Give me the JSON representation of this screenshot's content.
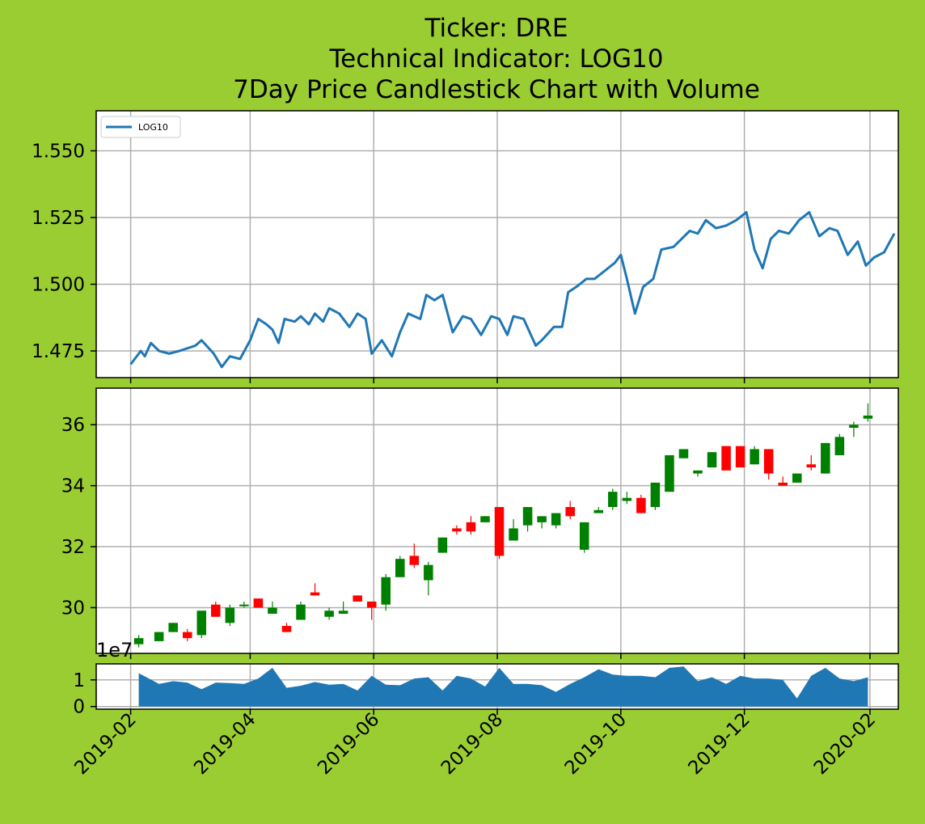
{
  "figure": {
    "title_lines": [
      "Ticker: DRE",
      "Technical Indicator: LOG10",
      "7Day Price Candlestick Chart with Volume"
    ],
    "background_color": "#9acd32",
    "x_axis": {
      "type": "date",
      "range": [
        "2019-01-15",
        "2020-02-15"
      ],
      "tick_labels": [
        "2019-02",
        "2019-04",
        "2019-06",
        "2019-08",
        "2019-10",
        "2019-12",
        "2020-02"
      ]
    }
  },
  "chart_data": [
    {
      "type": "line",
      "panel": "indicator",
      "ylim": [
        1.465,
        1.565
      ],
      "yticks": [
        "1.475",
        "1.500",
        "1.525",
        "1.550"
      ],
      "grid": true,
      "legend": {
        "placement": "top-left",
        "entries": [
          "LOG10"
        ]
      },
      "series": [
        {
          "name": "LOG10",
          "color": "#1f77b4",
          "points": [
            [
              "2019-02-01",
              1.47
            ],
            [
              "2019-02-06",
              1.475
            ],
            [
              "2019-02-08",
              1.473
            ],
            [
              "2019-02-11",
              1.478
            ],
            [
              "2019-02-15",
              1.475
            ],
            [
              "2019-02-20",
              1.474
            ],
            [
              "2019-02-25",
              1.475
            ],
            [
              "2019-03-05",
              1.477
            ],
            [
              "2019-03-08",
              1.479
            ],
            [
              "2019-03-14",
              1.474
            ],
            [
              "2019-03-18",
              1.469
            ],
            [
              "2019-03-22",
              1.473
            ],
            [
              "2019-03-27",
              1.472
            ],
            [
              "2019-04-01",
              1.479
            ],
            [
              "2019-04-05",
              1.487
            ],
            [
              "2019-04-09",
              1.485
            ],
            [
              "2019-04-12",
              1.483
            ],
            [
              "2019-04-15",
              1.478
            ],
            [
              "2019-04-18",
              1.487
            ],
            [
              "2019-04-23",
              1.486
            ],
            [
              "2019-04-26",
              1.488
            ],
            [
              "2019-04-30",
              1.485
            ],
            [
              "2019-05-03",
              1.489
            ],
            [
              "2019-05-07",
              1.486
            ],
            [
              "2019-05-10",
              1.491
            ],
            [
              "2019-05-15",
              1.489
            ],
            [
              "2019-05-20",
              1.484
            ],
            [
              "2019-05-24",
              1.489
            ],
            [
              "2019-05-28",
              1.487
            ],
            [
              "2019-05-31",
              1.474
            ],
            [
              "2019-06-05",
              1.479
            ],
            [
              "2019-06-10",
              1.473
            ],
            [
              "2019-06-14",
              1.482
            ],
            [
              "2019-06-18",
              1.489
            ],
            [
              "2019-06-24",
              1.487
            ],
            [
              "2019-06-27",
              1.496
            ],
            [
              "2019-07-01",
              1.494
            ],
            [
              "2019-07-05",
              1.496
            ],
            [
              "2019-07-10",
              1.482
            ],
            [
              "2019-07-15",
              1.488
            ],
            [
              "2019-07-19",
              1.487
            ],
            [
              "2019-07-24",
              1.481
            ],
            [
              "2019-07-29",
              1.488
            ],
            [
              "2019-08-02",
              1.487
            ],
            [
              "2019-08-06",
              1.481
            ],
            [
              "2019-08-09",
              1.488
            ],
            [
              "2019-08-14",
              1.487
            ],
            [
              "2019-08-20",
              1.477
            ],
            [
              "2019-08-23",
              1.479
            ],
            [
              "2019-08-29",
              1.484
            ],
            [
              "2019-09-02",
              1.484
            ],
            [
              "2019-09-05",
              1.497
            ],
            [
              "2019-09-09",
              1.499
            ],
            [
              "2019-09-14",
              1.502
            ],
            [
              "2019-09-18",
              1.502
            ],
            [
              "2019-09-23",
              1.505
            ],
            [
              "2019-09-28",
              1.508
            ],
            [
              "2019-10-01",
              1.511
            ],
            [
              "2019-10-04",
              1.502
            ],
            [
              "2019-10-08",
              1.489
            ],
            [
              "2019-10-12",
              1.499
            ],
            [
              "2019-10-17",
              1.502
            ],
            [
              "2019-10-21",
              1.513
            ],
            [
              "2019-10-27",
              1.514
            ],
            [
              "2019-10-31",
              1.517
            ],
            [
              "2019-11-04",
              1.52
            ],
            [
              "2019-11-08",
              1.519
            ],
            [
              "2019-11-12",
              1.524
            ],
            [
              "2019-11-17",
              1.521
            ],
            [
              "2019-11-22",
              1.522
            ],
            [
              "2019-11-27",
              1.524
            ],
            [
              "2019-12-02",
              1.527
            ],
            [
              "2019-12-06",
              1.513
            ],
            [
              "2019-12-10",
              1.506
            ],
            [
              "2019-12-14",
              1.517
            ],
            [
              "2019-12-18",
              1.52
            ],
            [
              "2019-12-23",
              1.519
            ],
            [
              "2019-12-28",
              1.524
            ],
            [
              "2020-01-02",
              1.527
            ],
            [
              "2020-01-07",
              1.518
            ],
            [
              "2020-01-12",
              1.521
            ],
            [
              "2020-01-16",
              1.52
            ],
            [
              "2020-01-21",
              1.511
            ],
            [
              "2020-01-26",
              1.516
            ],
            [
              "2020-01-30",
              1.507
            ],
            [
              "2020-02-03",
              1.51
            ],
            [
              "2020-02-08",
              1.512
            ],
            [
              "2020-02-13",
              1.519
            ]
          ]
        }
      ]
    },
    {
      "type": "candlestick",
      "panel": "price",
      "ylim": [
        28.5,
        37.2
      ],
      "yticks": [
        "30",
        "32",
        "34",
        "36"
      ],
      "grid": true,
      "up_color": "#008000",
      "down_color": "#ff0000",
      "candles": [
        [
          "2019-02-05",
          28.8,
          29.1,
          28.7,
          29.0
        ],
        [
          "2019-02-15",
          28.9,
          29.2,
          28.9,
          29.2
        ],
        [
          "2019-02-22",
          29.2,
          29.5,
          29.2,
          29.5
        ],
        [
          "2019-03-01",
          29.2,
          29.3,
          28.9,
          29.0
        ],
        [
          "2019-03-08",
          29.1,
          29.9,
          29.0,
          29.9
        ],
        [
          "2019-03-15",
          30.1,
          30.2,
          29.7,
          29.7
        ],
        [
          "2019-03-22",
          29.5,
          30.1,
          29.4,
          30.0
        ],
        [
          "2019-03-29",
          30.1,
          30.2,
          30.0,
          30.1
        ],
        [
          "2019-04-05",
          30.3,
          30.3,
          30.0,
          30.0
        ],
        [
          "2019-04-12",
          29.8,
          30.2,
          29.8,
          30.0
        ],
        [
          "2019-04-19",
          29.4,
          29.5,
          29.2,
          29.2
        ],
        [
          "2019-04-26",
          29.6,
          30.2,
          29.6,
          30.1
        ],
        [
          "2019-05-03",
          30.5,
          30.8,
          30.4,
          30.4
        ],
        [
          "2019-05-10",
          29.7,
          30.0,
          29.6,
          29.9
        ],
        [
          "2019-05-17",
          29.8,
          30.2,
          29.8,
          29.9
        ],
        [
          "2019-05-24",
          30.4,
          30.4,
          30.2,
          30.2
        ],
        [
          "2019-05-31",
          30.2,
          30.2,
          29.6,
          30.0
        ],
        [
          "2019-06-07",
          30.1,
          31.1,
          29.9,
          31.0
        ],
        [
          "2019-06-14",
          31.0,
          31.7,
          31.0,
          31.6
        ],
        [
          "2019-06-21",
          31.7,
          32.1,
          31.3,
          31.4
        ],
        [
          "2019-06-28",
          30.9,
          31.5,
          30.4,
          31.4
        ],
        [
          "2019-07-05",
          31.8,
          32.3,
          31.8,
          32.3
        ],
        [
          "2019-07-12",
          32.6,
          32.7,
          32.4,
          32.5
        ],
        [
          "2019-07-19",
          32.8,
          33.0,
          32.4,
          32.5
        ],
        [
          "2019-07-26",
          32.8,
          33.0,
          32.8,
          33.0
        ],
        [
          "2019-08-02",
          33.3,
          33.3,
          31.6,
          31.7
        ],
        [
          "2019-08-09",
          32.2,
          32.9,
          32.2,
          32.6
        ],
        [
          "2019-08-16",
          32.7,
          33.3,
          32.5,
          33.3
        ],
        [
          "2019-08-23",
          32.8,
          33.0,
          32.6,
          33.0
        ],
        [
          "2019-08-30",
          32.7,
          33.1,
          32.6,
          33.1
        ],
        [
          "2019-09-06",
          33.3,
          33.5,
          32.9,
          33.0
        ],
        [
          "2019-09-13",
          31.9,
          32.8,
          31.8,
          32.8
        ],
        [
          "2019-09-20",
          33.1,
          33.3,
          33.1,
          33.2
        ],
        [
          "2019-09-27",
          33.3,
          33.9,
          33.2,
          33.8
        ],
        [
          "2019-10-04",
          33.5,
          33.8,
          33.4,
          33.6
        ],
        [
          "2019-10-11",
          33.6,
          33.7,
          33.1,
          33.1
        ],
        [
          "2019-10-18",
          33.3,
          34.1,
          33.2,
          34.1
        ],
        [
          "2019-10-25",
          33.8,
          35.0,
          33.8,
          35.0
        ],
        [
          "2019-11-01",
          34.9,
          35.2,
          34.9,
          35.2
        ],
        [
          "2019-11-08",
          34.4,
          34.5,
          34.3,
          34.5
        ],
        [
          "2019-11-15",
          34.6,
          35.1,
          34.6,
          35.1
        ],
        [
          "2019-11-22",
          35.3,
          35.3,
          34.5,
          34.5
        ],
        [
          "2019-11-29",
          35.3,
          35.3,
          34.6,
          34.6
        ],
        [
          "2019-12-06",
          34.7,
          35.3,
          34.7,
          35.2
        ],
        [
          "2019-12-13",
          35.2,
          35.2,
          34.2,
          34.4
        ],
        [
          "2019-12-20",
          34.1,
          34.3,
          34.0,
          34.0
        ],
        [
          "2019-12-27",
          34.1,
          34.4,
          34.1,
          34.4
        ],
        [
          "2020-01-03",
          34.7,
          35.0,
          34.5,
          34.6
        ],
        [
          "2020-01-10",
          34.4,
          35.4,
          34.4,
          35.4
        ],
        [
          "2020-01-17",
          35.0,
          35.7,
          35.0,
          35.6
        ],
        [
          "2020-01-24",
          35.9,
          36.1,
          35.6,
          36.0
        ],
        [
          "2020-01-31",
          36.2,
          36.7,
          36.1,
          36.3
        ]
      ]
    },
    {
      "type": "area",
      "panel": "volume",
      "ylim": [
        -0.1,
        1.6
      ],
      "yticks": [
        "0",
        "1"
      ],
      "scale_label": "1e7",
      "grid": true,
      "color": "#1f77b4",
      "points": [
        [
          "2019-02-05",
          1.25
        ],
        [
          "2019-02-15",
          0.85
        ],
        [
          "2019-02-22",
          0.95
        ],
        [
          "2019-03-01",
          0.9
        ],
        [
          "2019-03-08",
          0.65
        ],
        [
          "2019-03-15",
          0.9
        ],
        [
          "2019-03-22",
          0.88
        ],
        [
          "2019-03-29",
          0.85
        ],
        [
          "2019-04-05",
          1.05
        ],
        [
          "2019-04-12",
          1.45
        ],
        [
          "2019-04-19",
          0.7
        ],
        [
          "2019-04-26",
          0.78
        ],
        [
          "2019-05-03",
          0.92
        ],
        [
          "2019-05-10",
          0.82
        ],
        [
          "2019-05-17",
          0.85
        ],
        [
          "2019-05-24",
          0.6
        ],
        [
          "2019-05-31",
          1.15
        ],
        [
          "2019-06-07",
          0.82
        ],
        [
          "2019-06-14",
          0.8
        ],
        [
          "2019-06-21",
          1.05
        ],
        [
          "2019-06-28",
          1.1
        ],
        [
          "2019-07-05",
          0.6
        ],
        [
          "2019-07-12",
          1.15
        ],
        [
          "2019-07-19",
          1.05
        ],
        [
          "2019-07-26",
          0.75
        ],
        [
          "2019-08-02",
          1.45
        ],
        [
          "2019-08-09",
          0.85
        ],
        [
          "2019-08-16",
          0.85
        ],
        [
          "2019-08-23",
          0.8
        ],
        [
          "2019-08-30",
          0.55
        ],
        [
          "2019-09-06",
          0.85
        ],
        [
          "2019-09-13",
          1.1
        ],
        [
          "2019-09-20",
          1.4
        ],
        [
          "2019-09-27",
          1.2
        ],
        [
          "2019-10-04",
          1.15
        ],
        [
          "2019-10-11",
          1.15
        ],
        [
          "2019-10-18",
          1.1
        ],
        [
          "2019-10-25",
          1.45
        ],
        [
          "2019-11-01",
          1.5
        ],
        [
          "2019-11-08",
          0.95
        ],
        [
          "2019-11-15",
          1.1
        ],
        [
          "2019-11-22",
          0.85
        ],
        [
          "2019-11-29",
          1.15
        ],
        [
          "2019-12-06",
          1.05
        ],
        [
          "2019-12-13",
          1.05
        ],
        [
          "2019-12-20",
          1.0
        ],
        [
          "2019-12-27",
          0.3
        ],
        [
          "2020-01-03",
          1.15
        ],
        [
          "2020-01-10",
          1.45
        ],
        [
          "2020-01-17",
          1.05
        ],
        [
          "2020-01-24",
          0.95
        ],
        [
          "2020-01-31",
          1.1
        ]
      ]
    }
  ]
}
